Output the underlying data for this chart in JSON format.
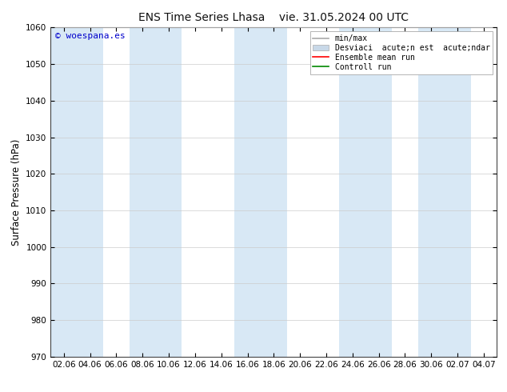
{
  "title_left": "ENS Time Series Lhasa",
  "title_right": "vie. 31.05.2024 00 UTC",
  "ylabel": "Surface Pressure (hPa)",
  "ylim": [
    970,
    1060
  ],
  "yticks": [
    970,
    980,
    990,
    1000,
    1010,
    1020,
    1030,
    1040,
    1050,
    1060
  ],
  "xtick_labels": [
    "02.06",
    "04.06",
    "06.06",
    "08.06",
    "10.06",
    "12.06",
    "14.06",
    "16.06",
    "18.06",
    "20.06",
    "22.06",
    "24.06",
    "26.06",
    "28.06",
    "30.06",
    "02.07",
    "04.07"
  ],
  "n_xticks": 17,
  "background_color": "#ffffff",
  "band_color": "#d8e8f5",
  "watermark": "© woespana.es",
  "watermark_color": "#0000cc",
  "legend_label_minmax": "min/max",
  "legend_label_std": "Desviaci  acute;n est  acute;ndar",
  "legend_label_ensemble": "Ensemble mean run",
  "legend_label_control": "Controll run",
  "legend_color_minmax": "#aaaaaa",
  "legend_color_std": "#c8d8e8",
  "legend_color_ensemble": "#ff0000",
  "legend_color_control": "#008800",
  "title_fontsize": 10,
  "tick_fontsize": 7.5,
  "ylabel_fontsize": 8.5,
  "legend_fontsize": 7
}
